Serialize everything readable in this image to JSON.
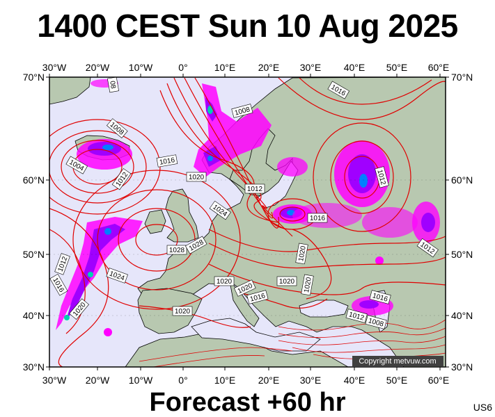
{
  "header": {
    "title": "1400 CEST Sun 10 Aug 2025"
  },
  "footer": {
    "forecast": "Forecast +60 hr",
    "code": "US6"
  },
  "copyright": "Copyright metvuw.com",
  "axes": {
    "lon_labels": [
      "30°W",
      "20°W",
      "10°W",
      "0°",
      "10°E",
      "20°E",
      "30°E",
      "40°E",
      "50°E",
      "60°E"
    ],
    "lat_labels": [
      "70°N",
      "60°N",
      "50°N",
      "40°N",
      "30°N"
    ]
  },
  "colors": {
    "sea": "#e6e6fa",
    "land": "#b8c8b0",
    "isobar": "#e00000",
    "precip_light": "#ff00ff",
    "precip_mid": "#a000ff",
    "precip_heavy": "#0080ff",
    "precip_core": "#00d0b0"
  },
  "isobar_labels": {
    "1004_w": "1004",
    "1008_w": "1008",
    "1012_w": "1012",
    "1016_w": "1016",
    "1008_top": "08",
    "1008_ns": "1008",
    "1016_ns": "1016",
    "1020_ns": "1020",
    "1024_ns": "1024",
    "1012_nor": "1012",
    "1016_baltic": "1016",
    "1016_ne": "1016",
    "1012_russia": "1012",
    "1012_east": "1012",
    "1028_a": "1028",
    "1028_b": "1028",
    "1024_biscay": "1024",
    "1020_iberia": "1020",
    "1012_az": "1012",
    "1016_az": "1016",
    "1020_az": "1020",
    "1020_alps": "1020",
    "1020_italy": "1020",
    "1020_balk": "1020",
    "1016_adriatic": "1016",
    "1020_black": "1020",
    "1020_turkey": "1020",
    "1016_caucasus": "1016",
    "1012_iran": "1012",
    "1008_iran": "1008"
  }
}
